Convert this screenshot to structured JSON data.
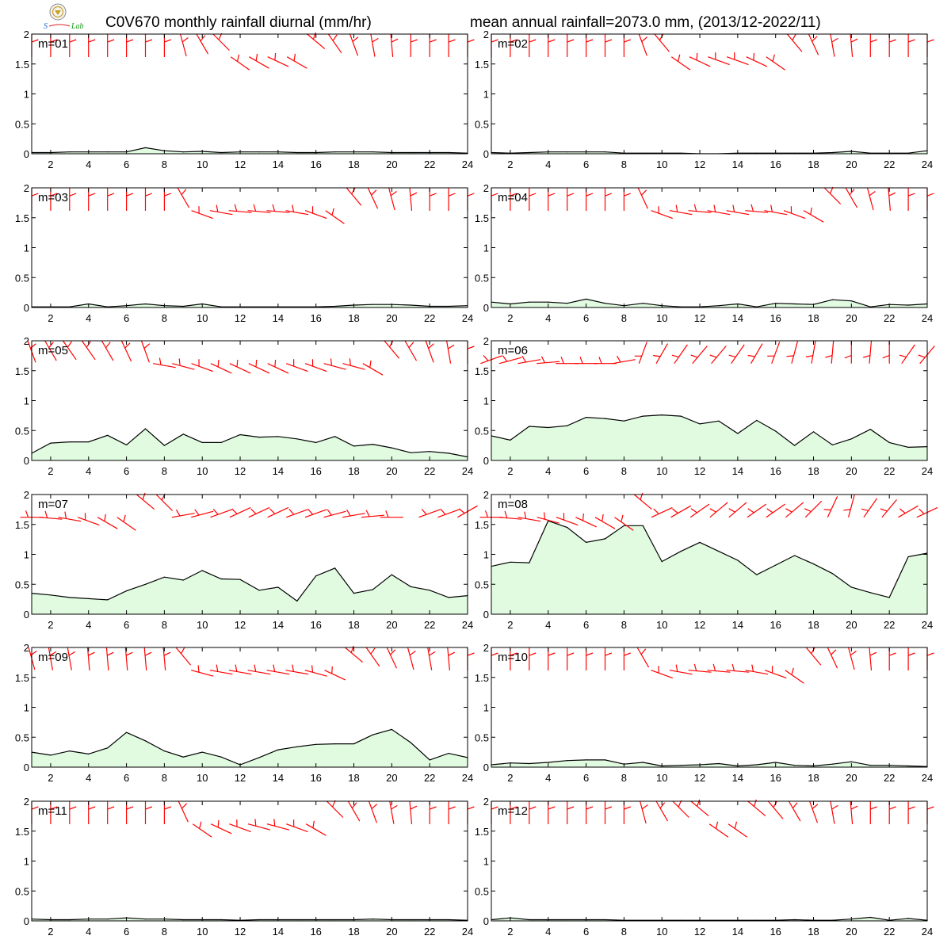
{
  "title_left": "C0V670 monthly rainfall diurnal (mm/hr)",
  "title_right": "mean annual rainfall=2073.0 mm, (2013/12-2022/11)",
  "logo_text": "Lab",
  "colors": {
    "fill": "#e0fbe0",
    "line": "#000000",
    "wind": "#ff0000",
    "frame": "#000000"
  },
  "chart_data": {
    "type": "area",
    "x_ticks": [
      2,
      4,
      6,
      8,
      10,
      12,
      14,
      16,
      18,
      20,
      22,
      24
    ],
    "y_ticks": [
      "0",
      "0.5",
      "1",
      "1.5",
      "2"
    ],
    "xlim": [
      1,
      24
    ],
    "ylim": [
      0,
      2
    ],
    "grid": false,
    "hours": [
      1,
      2,
      3,
      4,
      5,
      6,
      7,
      8,
      9,
      10,
      11,
      12,
      13,
      14,
      15,
      16,
      17,
      18,
      19,
      20,
      21,
      22,
      23,
      24
    ],
    "panels": [
      {
        "label": "m=01",
        "values": [
          0.02,
          0.02,
          0.03,
          0.03,
          0.03,
          0.03,
          0.1,
          0.05,
          0.03,
          0.04,
          0.02,
          0.03,
          0.03,
          0.03,
          0.02,
          0.02,
          0.03,
          0.03,
          0.03,
          0.02,
          0.02,
          0.02,
          0.02,
          0.01
        ],
        "wind_dir": [
          0,
          0,
          0,
          0,
          0,
          0,
          0,
          0,
          15,
          30,
          45,
          55,
          60,
          65,
          60,
          50,
          35,
          20,
          10,
          5,
          0,
          0,
          0,
          0
        ]
      },
      {
        "label": "m=02",
        "values": [
          0.02,
          0.01,
          0.02,
          0.03,
          0.03,
          0.03,
          0.03,
          0.01,
          0.01,
          0.01,
          0.01,
          0.0,
          0.0,
          0.01,
          0.01,
          0.01,
          0.01,
          0.01,
          0.02,
          0.04,
          0.01,
          0.01,
          0.01,
          0.05
        ],
        "wind_dir": [
          0,
          0,
          0,
          0,
          0,
          0,
          0,
          0,
          20,
          40,
          55,
          65,
          70,
          70,
          65,
          55,
          40,
          25,
          10,
          5,
          0,
          0,
          0,
          0
        ]
      },
      {
        "label": "m=03",
        "values": [
          0.01,
          0.01,
          0.01,
          0.06,
          0.01,
          0.03,
          0.06,
          0.03,
          0.02,
          0.06,
          0.01,
          0.01,
          0.01,
          0.01,
          0.01,
          0.01,
          0.02,
          0.04,
          0.05,
          0.05,
          0.04,
          0.02,
          0.02,
          0.03
        ],
        "wind_dir": [
          0,
          0,
          0,
          0,
          0,
          0,
          0,
          0,
          30,
          70,
          80,
          85,
          85,
          85,
          80,
          70,
          55,
          40,
          25,
          15,
          5,
          0,
          0,
          0
        ]
      },
      {
        "label": "m=04",
        "values": [
          0.09,
          0.06,
          0.09,
          0.09,
          0.07,
          0.14,
          0.07,
          0.03,
          0.07,
          0.03,
          0.01,
          0.01,
          0.03,
          0.06,
          0.01,
          0.07,
          0.06,
          0.05,
          0.13,
          0.11,
          0.01,
          0.05,
          0.04,
          0.06
        ],
        "wind_dir": [
          0,
          0,
          0,
          0,
          0,
          0,
          0,
          0,
          25,
          70,
          80,
          85,
          80,
          80,
          85,
          80,
          70,
          60,
          45,
          30,
          15,
          5,
          0,
          0
        ]
      },
      {
        "label": "m=05",
        "values": [
          0.12,
          0.29,
          0.31,
          0.31,
          0.42,
          0.26,
          0.53,
          0.25,
          0.44,
          0.3,
          0.3,
          0.43,
          0.39,
          0.4,
          0.36,
          0.3,
          0.4,
          0.24,
          0.27,
          0.21,
          0.13,
          0.15,
          0.12,
          0.06
        ],
        "wind_dir": [
          20,
          30,
          35,
          35,
          30,
          25,
          20,
          80,
          75,
          70,
          65,
          65,
          65,
          65,
          70,
          70,
          75,
          75,
          60,
          40,
          30,
          20,
          10,
          0
        ]
      },
      {
        "label": "m=06",
        "values": [
          0.41,
          0.34,
          0.57,
          0.55,
          0.58,
          0.72,
          0.7,
          0.66,
          0.74,
          0.76,
          0.74,
          0.61,
          0.66,
          0.45,
          0.67,
          0.49,
          0.25,
          0.48,
          0.26,
          0.36,
          0.52,
          0.3,
          0.22,
          0.23
        ],
        "wind_dir": [
          110,
          105,
          100,
          95,
          90,
          90,
          90,
          100,
          160,
          150,
          145,
          140,
          140,
          145,
          150,
          160,
          165,
          170,
          175,
          180,
          175,
          180,
          145,
          140
        ]
      },
      {
        "label": "m=07",
        "values": [
          0.35,
          0.32,
          0.28,
          0.26,
          0.24,
          0.39,
          0.5,
          0.62,
          0.57,
          0.73,
          0.59,
          0.58,
          0.4,
          0.45,
          0.22,
          0.64,
          0.77,
          0.35,
          0.41,
          0.66,
          0.46,
          0.4,
          0.28,
          0.31
        ],
        "wind_dir": [
          90,
          85,
          80,
          70,
          60,
          55,
          50,
          45,
          100,
          105,
          110,
          115,
          115,
          115,
          110,
          110,
          105,
          100,
          95,
          90,
          null,
          110,
          110,
          120
        ]
      },
      {
        "label": "m=08",
        "values": [
          0.8,
          0.87,
          0.86,
          1.56,
          1.45,
          1.2,
          1.26,
          1.48,
          1.48,
          0.88,
          1.05,
          1.2,
          1.05,
          0.9,
          0.66,
          0.82,
          0.98,
          0.84,
          0.68,
          0.45,
          0.36,
          0.28,
          0.96,
          1.02
        ],
        "wind_dir": [
          90,
          85,
          80,
          75,
          70,
          65,
          60,
          55,
          50,
          115,
          120,
          125,
          130,
          130,
          125,
          125,
          130,
          135,
          155,
          165,
          145,
          140,
          120,
          115
        ]
      },
      {
        "label": "m=09",
        "values": [
          0.25,
          0.2,
          0.27,
          0.22,
          0.32,
          0.58,
          0.44,
          0.27,
          0.17,
          0.25,
          0.17,
          0.04,
          0.16,
          0.29,
          0.34,
          0.38,
          0.39,
          0.39,
          0.54,
          0.63,
          0.41,
          0.12,
          0.23,
          0.16
        ],
        "wind_dir": [
          15,
          10,
          10,
          5,
          5,
          5,
          5,
          5,
          40,
          75,
          80,
          80,
          80,
          80,
          80,
          75,
          65,
          50,
          35,
          25,
          15,
          10,
          5,
          0
        ]
      },
      {
        "label": "m=10",
        "values": [
          0.04,
          0.07,
          0.06,
          0.08,
          0.11,
          0.12,
          0.12,
          0.05,
          0.08,
          0.02,
          0.03,
          0.04,
          0.06,
          0.02,
          0.04,
          0.08,
          0.03,
          0.02,
          0.05,
          0.09,
          0.03,
          0.03,
          0.02,
          0.01
        ],
        "wind_dir": [
          0,
          0,
          0,
          0,
          0,
          0,
          0,
          0,
          30,
          70,
          80,
          85,
          85,
          85,
          80,
          70,
          55,
          40,
          25,
          15,
          5,
          0,
          0,
          0
        ]
      },
      {
        "label": "m=11",
        "values": [
          0.03,
          0.02,
          0.02,
          0.03,
          0.03,
          0.05,
          0.03,
          0.03,
          0.02,
          0.02,
          0.02,
          0.01,
          0.02,
          0.02,
          0.02,
          0.02,
          0.02,
          0.02,
          0.03,
          0.02,
          0.02,
          0.02,
          0.02,
          0.01
        ],
        "wind_dir": [
          0,
          0,
          0,
          0,
          0,
          0,
          0,
          0,
          25,
          55,
          65,
          70,
          75,
          75,
          70,
          60,
          45,
          30,
          20,
          10,
          5,
          0,
          0,
          0
        ]
      },
      {
        "label": "m=12",
        "values": [
          0.02,
          0.05,
          0.02,
          0.02,
          0.02,
          0.02,
          0.02,
          0.01,
          0.01,
          0.01,
          0.01,
          0.01,
          0.01,
          0.01,
          0.01,
          0.01,
          0.02,
          0.01,
          0.01,
          0.03,
          0.06,
          0.01,
          0.04,
          0.01
        ],
        "wind_dir": [
          0,
          0,
          0,
          0,
          0,
          0,
          0,
          0,
          15,
          30,
          45,
          50,
          55,
          55,
          50,
          40,
          30,
          20,
          10,
          5,
          0,
          0,
          0,
          0
        ]
      }
    ]
  }
}
